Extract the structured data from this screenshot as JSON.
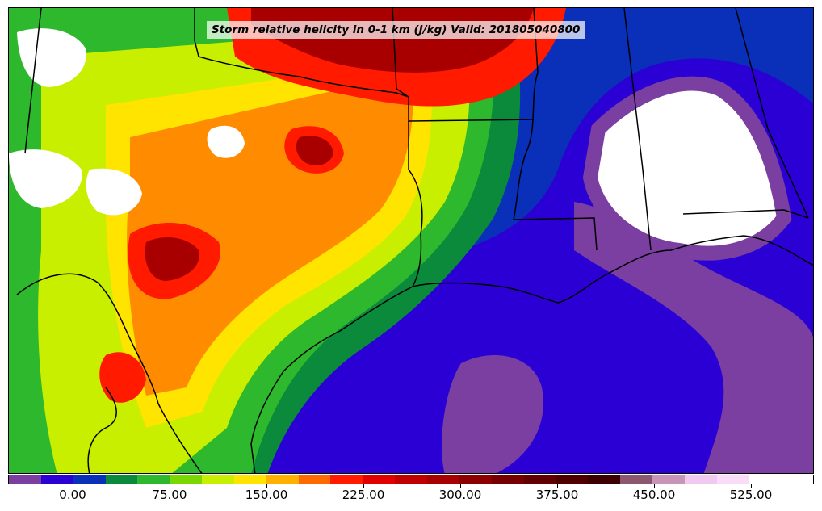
{
  "title": "Storm relative helicity in 0-1 km (J/kg) Valid: 201805040800",
  "colorbar": {
    "colors": [
      "#7a3fa0",
      "#2a00d4",
      "#0a2fb8",
      "#0a8a3a",
      "#2db82d",
      "#7ad800",
      "#c8ee00",
      "#ffe400",
      "#ffb000",
      "#ff6a00",
      "#ff1a00",
      "#e00000",
      "#c00000",
      "#a80000",
      "#8c0000",
      "#760000",
      "#600000",
      "#4e0000",
      "#3c0000",
      "#8c5870",
      "#c894b8",
      "#f0c8f0",
      "#f8dcf8",
      "#ffffff",
      "#ffffff"
    ],
    "tick_labels": [
      "0.00",
      "75.00",
      "150.00",
      "225.00",
      "300.00",
      "375.00",
      "450.00",
      "525.00"
    ]
  },
  "map": {
    "region": "South-central United States and northwestern Gulf of Mexico",
    "fill_colors": {
      "gulf_low": "#2a00d4",
      "purple": "#7a3fa0",
      "blue": "#0a2fb8",
      "dark_green": "#0a8a3a",
      "green": "#2db82d",
      "lime": "#c8ee00",
      "yellow": "#ffe400",
      "orange": "#ff8c00",
      "red": "#ff1a00",
      "dark_red": "#a80000",
      "white": "#ffffff"
    }
  }
}
